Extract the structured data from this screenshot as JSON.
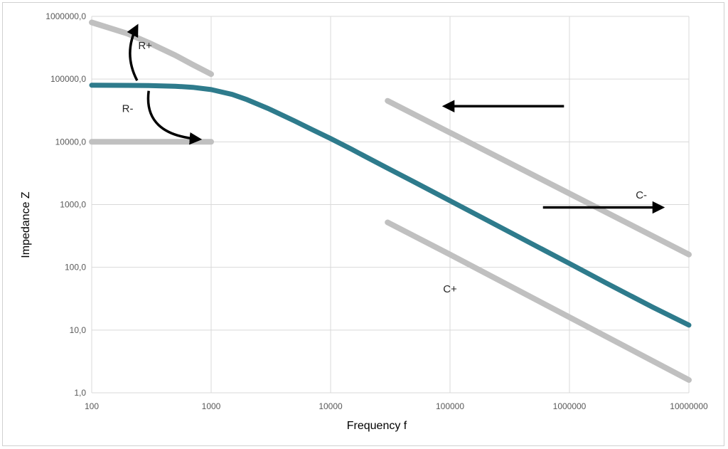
{
  "chart_data": {
    "type": "line",
    "title": "",
    "xlabel": "Frequency f",
    "ylabel": "Impedance Z",
    "x_scale": "log",
    "y_scale": "log",
    "xlim": [
      100,
      10000000
    ],
    "ylim": [
      1,
      1000000
    ],
    "grid": true,
    "legend": "none",
    "x_ticks": [
      "100",
      "1000",
      "10000",
      "100000",
      "1000000",
      "10000000"
    ],
    "y_ticks": [
      "1,0",
      "10,0",
      "100,0",
      "1000,0",
      "10000,0",
      "100000,0",
      "1000000,0"
    ],
    "colors": {
      "main": "#2e7b8c",
      "reference": "#c0c0c0",
      "grid": "#d9d9d9",
      "arrow": "#000000"
    },
    "series": [
      {
        "role": "main",
        "x": [
          100,
          200,
          300,
          500,
          700,
          1000,
          1500,
          2000,
          3000,
          5000,
          7000,
          10000,
          15000,
          20000,
          30000,
          50000,
          100000,
          200000,
          500000,
          1000000,
          2000000,
          5000000,
          10000000
        ],
        "y": [
          80000,
          79500,
          79000,
          77000,
          74000,
          68000,
          57000,
          47000,
          34000,
          21500,
          15700,
          11300,
          7600,
          5700,
          3800,
          2300,
          1150,
          575,
          230,
          115,
          57,
          23,
          12
        ]
      },
      {
        "role": "reference",
        "x": [
          100,
          200,
          300,
          500,
          700,
          1000
        ],
        "y": [
          800000,
          530000,
          380000,
          240000,
          170000,
          120000
        ]
      },
      {
        "role": "reference",
        "x": [
          100,
          1000
        ],
        "y": [
          10000,
          10000
        ]
      },
      {
        "role": "reference",
        "x": [
          30000,
          100000,
          1000000,
          10000000
        ],
        "y": [
          45000,
          14000,
          1500,
          160
        ]
      },
      {
        "role": "reference",
        "x": [
          30000,
          100000,
          1000000,
          10000000
        ],
        "y": [
          520,
          160,
          16,
          1.6
        ]
      }
    ],
    "annotations": [
      {
        "text": "R+",
        "x": 280,
        "y": 300000
      },
      {
        "text": "R-",
        "x": 200,
        "y": 30000
      },
      {
        "text": "C-",
        "x": 4000000,
        "y": 1250
      },
      {
        "text": "C+",
        "x": 100000,
        "y": 40
      }
    ],
    "arrows": [
      {
        "label": "R+",
        "from": [
          240,
          95000
        ],
        "to": [
          240,
          700000
        ],
        "bend": "left"
      },
      {
        "label": "R-",
        "from": [
          300,
          65000
        ],
        "to": [
          800,
          11000
        ],
        "bend": "down"
      },
      {
        "label": "C-",
        "from": [
          600000,
          900
        ],
        "to": [
          6000000,
          900
        ]
      },
      {
        "label": "C+",
        "from": [
          900000,
          37000
        ],
        "to": [
          90000,
          37000
        ]
      }
    ]
  }
}
